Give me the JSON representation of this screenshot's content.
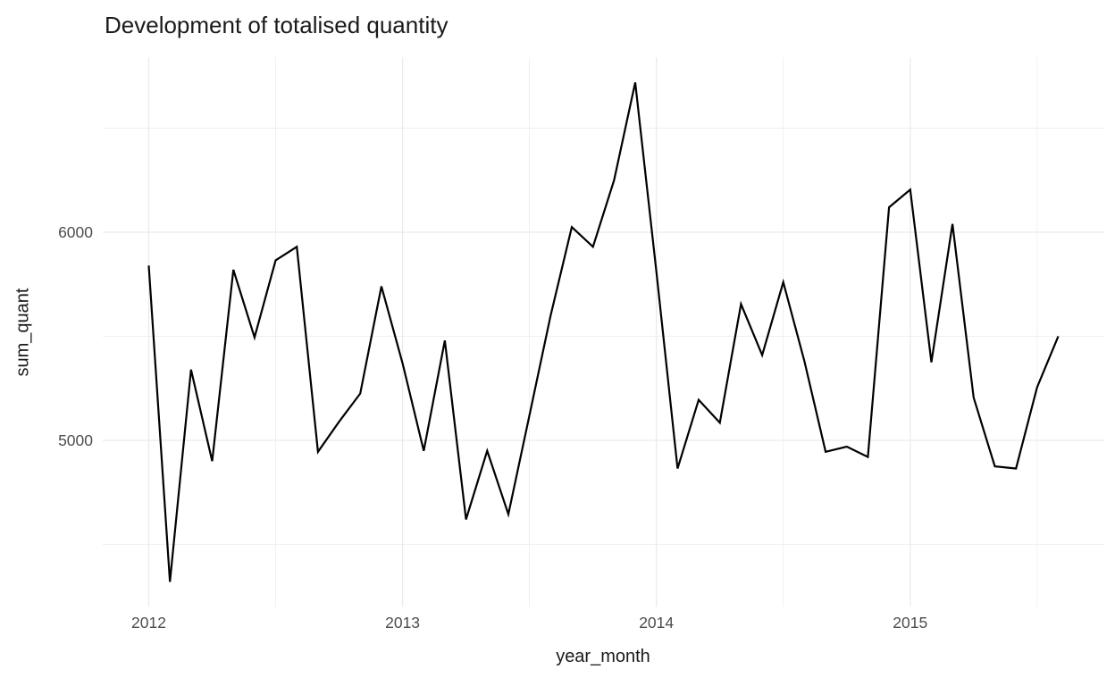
{
  "chart_data": {
    "type": "line",
    "title": "Development of totalised quantity",
    "xlabel": "year_month",
    "ylabel": "sum_quant",
    "legend": "none",
    "grid": true,
    "background": "#FFFFFF",
    "line_color": "#000000",
    "grid_color": "#EBEBEB",
    "tick_label_color": "#4D4D4D",
    "text_color": "#1A1A1A",
    "ylim": [
      4200,
      6840
    ],
    "y_ticks": [
      {
        "value": 5000,
        "label": "5000"
      },
      {
        "value": 6000,
        "label": "6000"
      }
    ],
    "y_minor_ticks": [
      4500,
      5500,
      6500
    ],
    "x_ticks": [
      {
        "label": "2012",
        "month_index": 0
      },
      {
        "label": "2013",
        "month_index": 12
      },
      {
        "label": "2014",
        "month_index": 24
      },
      {
        "label": "2015",
        "month_index": 36
      }
    ],
    "x_minor_month_indices": [
      6,
      18,
      30,
      42
    ],
    "x": [
      "2012-01",
      "2012-02",
      "2012-03",
      "2012-04",
      "2012-05",
      "2012-06",
      "2012-07",
      "2012-08",
      "2012-09",
      "2012-10",
      "2012-11",
      "2012-12",
      "2013-01",
      "2013-02",
      "2013-03",
      "2013-04",
      "2013-05",
      "2013-06",
      "2013-07",
      "2013-08",
      "2013-09",
      "2013-10",
      "2013-11",
      "2013-12",
      "2014-01",
      "2014-02",
      "2014-03",
      "2014-04",
      "2014-05",
      "2014-06",
      "2014-07",
      "2014-08",
      "2014-09",
      "2014-10",
      "2014-11",
      "2014-12",
      "2015-01",
      "2015-02",
      "2015-03",
      "2015-04",
      "2015-05",
      "2015-06",
      "2015-07",
      "2015-08"
    ],
    "values": [
      5840,
      4320,
      5340,
      4900,
      5820,
      5495,
      5865,
      5930,
      4945,
      5090,
      5225,
      5740,
      5370,
      4950,
      5480,
      4620,
      4950,
      4645,
      5120,
      5600,
      6025,
      5930,
      6250,
      6720,
      5810,
      4865,
      5195,
      5085,
      5655,
      5410,
      5760,
      5380,
      4945,
      4970,
      4920,
      6120,
      6205,
      5375,
      6040,
      5205,
      4875,
      4865,
      5255,
      5500
    ]
  }
}
